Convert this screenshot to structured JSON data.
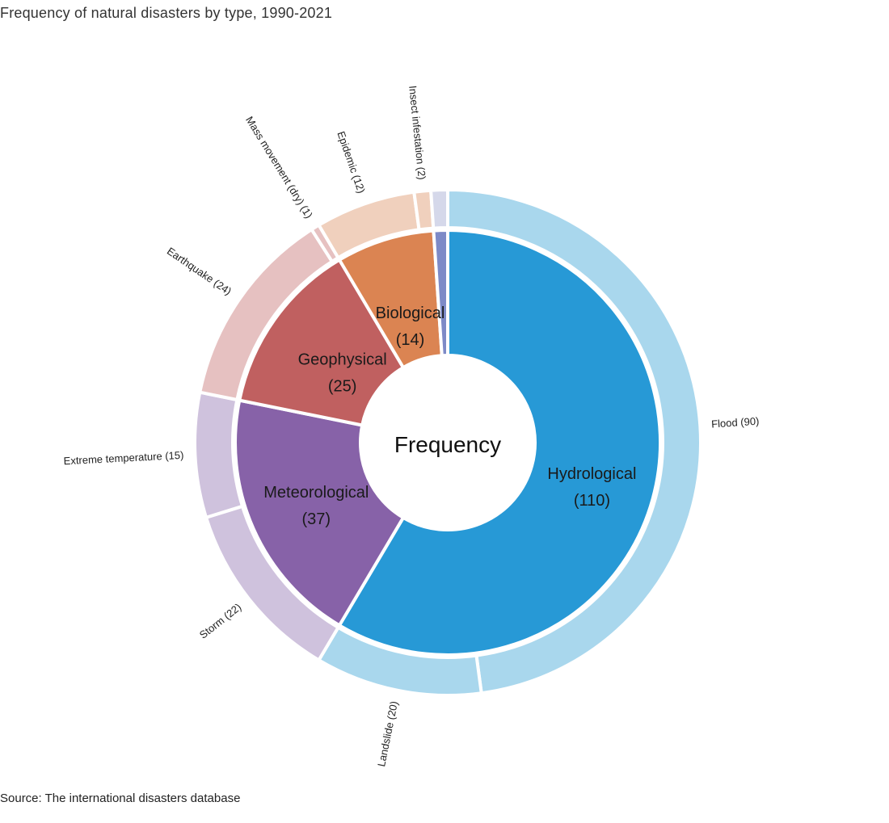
{
  "chart_data": {
    "type": "sunburst",
    "title": "Frequency of natural disasters by type, 1990-2021",
    "center_label": "Frequency",
    "source": "Source: The international disasters database",
    "inner": [
      {
        "name": "Hydrological",
        "value": 110,
        "label_value": "(110)",
        "color": "#2799d6"
      },
      {
        "name": "Meteorological",
        "value": 37,
        "label_value": "(37)",
        "color": "#8762a8"
      },
      {
        "name": "Geophysical",
        "value": 25,
        "label_value": "(25)",
        "color": "#c06060"
      },
      {
        "name": "Biological",
        "value": 14,
        "label_value": "(14)",
        "color": "#db8452"
      },
      {
        "name": "",
        "value": 2,
        "label_value": "",
        "color": "#7d8ac7"
      }
    ],
    "outer": [
      {
        "label": "Flood (90)",
        "value": 90,
        "color": "#a9d7ed"
      },
      {
        "label": "Landslide (20)",
        "value": 20,
        "color": "#a9d7ed"
      },
      {
        "label": "Storm (22)",
        "value": 22,
        "color": "#cfc2dd"
      },
      {
        "label": "Extreme temperature (15)",
        "value": 15,
        "color": "#cfc2dd"
      },
      {
        "label": "Earthquake (24)",
        "value": 24,
        "color": "#e6c1c1"
      },
      {
        "label": "Mass movement (dry) (1)",
        "value": 1,
        "color": "#e6c1c1"
      },
      {
        "label": "Epidemic (12)",
        "value": 12,
        "color": "#f0d0bd"
      },
      {
        "label": "Insect infestation (2)",
        "value": 2,
        "color": "#f0d0bd"
      },
      {
        "label": "",
        "value": 2,
        "color": "#d5d8ea"
      }
    ]
  }
}
